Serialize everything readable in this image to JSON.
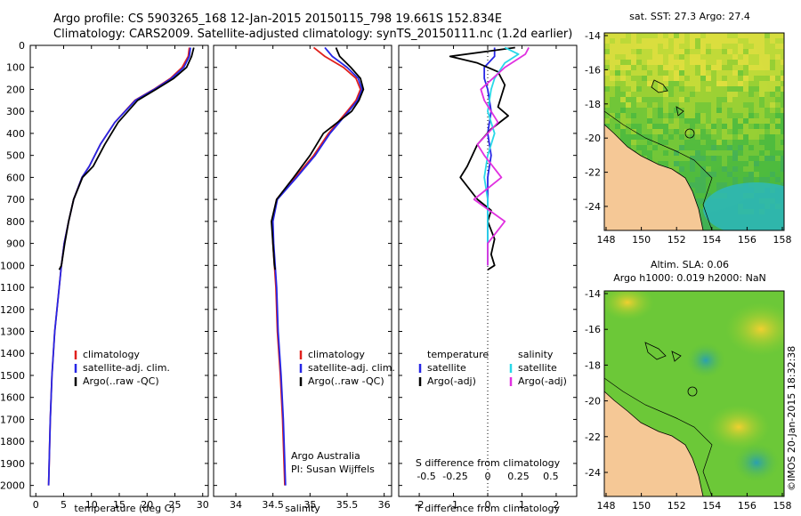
{
  "header": {
    "line1": "Argo profile: CS 5903265_168 12-Jan-2015 20150115_798 19.661S 152.834E",
    "line2": "Climatology: CARS2009. Satellite-adjusted climatology: synTS_20150111.nc (1.2d earlier)"
  },
  "colors": {
    "climatology": "#e0201c",
    "satellite": "#2626e6",
    "argo": "#000000",
    "salinity_satellite": "#28d8e8",
    "salinity_argo": "#e030e0",
    "land": "#f5c896"
  },
  "chart_data": [
    {
      "type": "line",
      "xlabel": "temperature (deg C)",
      "xlim": [
        -1,
        31
      ],
      "ylim": [
        2050,
        0
      ],
      "xticks": [
        "0",
        "5",
        "10",
        "15",
        "20",
        "25",
        "30"
      ],
      "yticks": [
        "0",
        "100",
        "200",
        "300",
        "400",
        "500",
        "600",
        "700",
        "800",
        "900",
        "1000",
        "1100",
        "1200",
        "1300",
        "1400",
        "1500",
        "1600",
        "1700",
        "1800",
        "1900",
        "2000"
      ],
      "legend": [
        "climatology",
        "satellite-adj. clim.",
        "Argo(..raw -QC)"
      ],
      "series": [
        {
          "name": "climatology",
          "color": "#e0201c",
          "x": [
            27.6,
            27.4,
            26.3,
            24.2,
            21.2,
            17.8,
            14.2,
            11.6,
            9.6,
            8.3,
            6.8,
            5.9,
            5.1,
            4.6,
            4.2,
            3.4,
            2.9,
            2.6,
            2.4,
            2.3
          ],
          "y": [
            10,
            50,
            100,
            150,
            200,
            250,
            350,
            450,
            550,
            600,
            700,
            800,
            900,
            1000,
            1100,
            1300,
            1500,
            1700,
            1900,
            2000
          ]
        },
        {
          "name": "satellite-adj. clim.",
          "color": "#2626e6",
          "x": [
            27.8,
            27.6,
            26.6,
            24.4,
            21.3,
            17.9,
            14.2,
            11.6,
            9.6,
            8.3,
            6.8,
            5.9,
            5.1,
            4.6,
            4.2,
            3.4,
            2.9,
            2.6,
            2.4,
            2.3
          ],
          "y": [
            10,
            50,
            100,
            150,
            200,
            250,
            350,
            450,
            550,
            600,
            700,
            800,
            900,
            1000,
            1100,
            1300,
            1500,
            1700,
            1900,
            2000
          ]
        },
        {
          "name": "Argo(..raw -QC)",
          "color": "#000000",
          "x": [
            28.4,
            28.0,
            27.1,
            24.8,
            21.6,
            18.3,
            14.8,
            12.4,
            10.3,
            8.4,
            6.8,
            5.9,
            5.2,
            4.6,
            4.2
          ],
          "y": [
            10,
            50,
            100,
            150,
            200,
            250,
            350,
            450,
            550,
            600,
            700,
            800,
            900,
            1000,
            1020
          ]
        }
      ]
    },
    {
      "type": "line",
      "xlabel": "salinity",
      "xlim": [
        33.7,
        36.1
      ],
      "ylim": [
        2050,
        0
      ],
      "xticks": [
        "34",
        "34.5",
        "35",
        "35.5",
        "36"
      ],
      "legend": [
        "climatology",
        "satellite-adj. clim.",
        "Argo(..raw -QC)"
      ],
      "series": [
        {
          "name": "climatology",
          "color": "#e0201c",
          "x": [
            35.05,
            35.2,
            35.45,
            35.62,
            35.68,
            35.62,
            35.5,
            35.25,
            35.05,
            34.8,
            34.55,
            34.49,
            34.5,
            34.52,
            34.54,
            34.56,
            34.6,
            34.63,
            34.65,
            34.66
          ],
          "y": [
            10,
            50,
            100,
            150,
            200,
            250,
            300,
            400,
            500,
            600,
            700,
            800,
            900,
            1000,
            1100,
            1300,
            1500,
            1700,
            1900,
            2000
          ]
        },
        {
          "name": "satellite-adj. clim.",
          "color": "#2626e6",
          "x": [
            35.2,
            35.3,
            35.5,
            35.65,
            35.7,
            35.64,
            35.52,
            35.27,
            35.07,
            34.82,
            34.56,
            34.5,
            34.51,
            34.53,
            34.55,
            34.57,
            34.61,
            34.64,
            34.66,
            34.67
          ],
          "y": [
            10,
            50,
            100,
            150,
            200,
            250,
            300,
            400,
            500,
            600,
            700,
            800,
            900,
            1000,
            1100,
            1300,
            1500,
            1700,
            1900,
            2000
          ]
        },
        {
          "name": "Argo(..raw -QC)",
          "color": "#000000",
          "x": [
            35.35,
            35.4,
            35.55,
            35.68,
            35.72,
            35.66,
            35.56,
            35.18,
            35.0,
            34.78,
            34.55,
            34.48,
            34.5,
            34.52,
            34.53
          ],
          "y": [
            10,
            50,
            100,
            150,
            200,
            250,
            300,
            400,
            500,
            600,
            700,
            800,
            900,
            1000,
            1020
          ]
        }
      ],
      "annotation": [
        "Argo Australia",
        "PI: Susan Wijffels"
      ]
    },
    {
      "type": "line",
      "xlabel": "T difference from climatology",
      "xlabel_top": "S difference from climatology",
      "xlim": [
        -2.6,
        2.6
      ],
      "ylim": [
        2050,
        0
      ],
      "xticks": [
        "-2",
        "-1",
        "0",
        "1",
        "2"
      ],
      "xticks_top": [
        "-0.5",
        "-0.25",
        "0",
        "0.25",
        "0.5"
      ],
      "legend_headers": [
        "temperature",
        "salinity"
      ],
      "legend": [
        "satellite",
        "Argo(-adj)",
        "satellite",
        "Argo(-adj)"
      ],
      "series": [
        {
          "name": "satellite",
          "color": "#2626e6",
          "x": [
            0.2,
            0.2,
            -0.1,
            -0.1,
            0.0,
            0.1,
            0.0,
            0.1,
            0.0,
            0.0,
            0.0,
            0.0
          ],
          "y": [
            10,
            50,
            100,
            150,
            200,
            300,
            400,
            500,
            600,
            700,
            800,
            1000
          ]
        },
        {
          "name": "Argo(-adj)",
          "color": "#000000",
          "x": [
            0.8,
            -1.1,
            -0.3,
            0.3,
            0.5,
            0.3,
            0.6,
            0.1,
            -0.3,
            -0.6,
            -0.8,
            -0.3,
            0.1,
            0.0,
            0.2,
            0.1,
            0.2,
            0.0
          ],
          "y": [
            10,
            50,
            80,
            120,
            180,
            280,
            320,
            380,
            450,
            550,
            600,
            700,
            750,
            800,
            880,
            950,
            1000,
            1020
          ]
        },
        {
          "name": "satellite",
          "color": "#28d8e8",
          "x": [
            0.5,
            0.9,
            0.5,
            0.2,
            0.1,
            0.0,
            0.2,
            0.0,
            -0.1,
            0.0,
            0.0,
            0.0,
            0.0
          ],
          "y": [
            10,
            40,
            80,
            150,
            200,
            300,
            400,
            500,
            600,
            700,
            800,
            900,
            1000
          ]
        },
        {
          "name": "Argo(-adj)",
          "color": "#e030e0",
          "x": [
            1.2,
            1.1,
            0.5,
            -0.2,
            -0.1,
            0.3,
            -0.3,
            -0.1,
            0.4,
            -0.4,
            0.5,
            0.0,
            0.0
          ],
          "y": [
            10,
            40,
            100,
            200,
            250,
            350,
            450,
            500,
            600,
            700,
            800,
            900,
            1000
          ]
        }
      ]
    }
  ],
  "maps": {
    "sst": {
      "title": "sat. SST: 27.3  Argo: 27.4",
      "xticks": [
        "148",
        "150",
        "152",
        "154",
        "156",
        "158"
      ],
      "yticks": [
        "-14",
        "-16",
        "-18",
        "-20",
        "-22",
        "-24"
      ]
    },
    "sla": {
      "title1": "Altim. SLA: 0.06",
      "title2": "Argo h1000: 0.019 h2000: NaN",
      "xticks": [
        "148",
        "150",
        "152",
        "154",
        "156",
        "158"
      ],
      "yticks": [
        "-14",
        "-16",
        "-18",
        "-20",
        "-22",
        "-24"
      ]
    }
  },
  "credit": "©IMOS 20-Jan-2015 18:32:38"
}
